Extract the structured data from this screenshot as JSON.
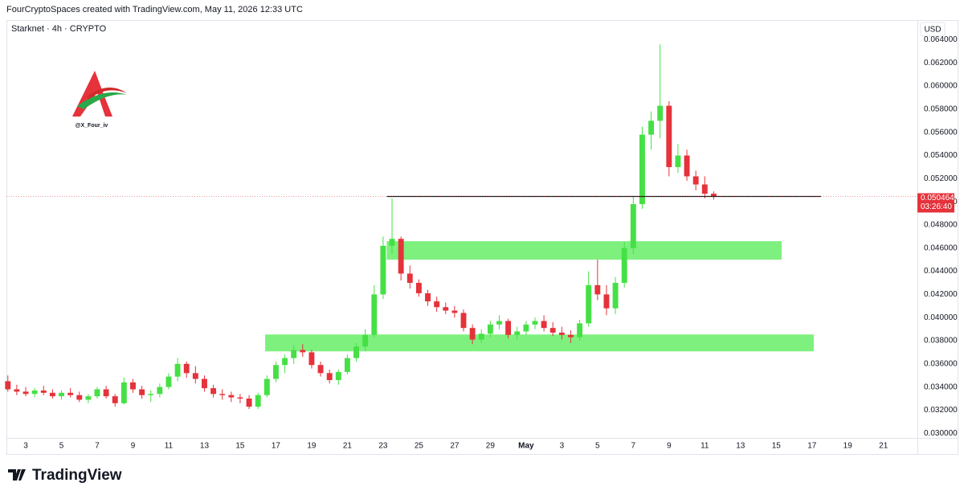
{
  "header": "FourCryptoSpaces created with TradingView.com, May 11, 2026 12:33 UTC",
  "watermark": "@X_Four_iv",
  "footer": "TradingView",
  "chart_data": {
    "type": "candlestick",
    "title": "Starknet · 4h · CRYPTO",
    "currency": "USD",
    "up_color": "#45e045",
    "down_color": "#e5323b",
    "grid": false,
    "x": [
      -1,
      -0.5,
      0,
      0.5,
      1,
      1.5,
      2,
      2.5,
      3,
      3.5,
      4,
      4.5,
      5,
      5.5,
      6,
      6.5,
      7,
      7.5,
      8,
      8.5,
      9,
      9.5,
      10,
      10.5,
      11,
      11.5,
      12,
      12.5,
      13,
      13.5,
      14,
      14.5,
      15,
      15.5,
      16,
      16.5,
      17,
      17.5,
      18,
      18.5,
      19,
      19.5,
      20,
      20.5,
      21,
      21.5,
      22,
      22.5,
      23,
      23.5,
      24,
      24.5,
      25,
      25.5,
      26,
      26.5,
      27,
      27.5,
      28,
      28.5,
      29,
      29.5,
      30,
      30.5,
      31,
      31.5,
      32,
      32.5,
      33,
      33.5,
      34,
      34.5,
      35,
      35.5,
      36,
      36.5,
      37,
      37.5,
      38,
      38.5
    ],
    "open": [
      0.0345,
      0.0338,
      0.0336,
      0.0334,
      0.0337,
      0.0335,
      0.0332,
      0.0335,
      0.0333,
      0.0329,
      0.0332,
      0.0338,
      0.0332,
      0.0326,
      0.0344,
      0.0338,
      0.0333,
      0.0334,
      0.034,
      0.0349,
      0.036,
      0.0352,
      0.0347,
      0.0339,
      0.0334,
      0.0333,
      0.0331,
      0.033,
      0.0323,
      0.0333,
      0.0347,
      0.0359,
      0.0365,
      0.0372,
      0.037,
      0.0359,
      0.0352,
      0.0346,
      0.0353,
      0.0365,
      0.0375,
      0.0385,
      0.042,
      0.0462,
      0.0468,
      0.0438,
      0.043,
      0.0421,
      0.0414,
      0.0409,
      0.0406,
      0.0404,
      0.0391,
      0.0381,
      0.0386,
      0.0394,
      0.0397,
      0.0385,
      0.0388,
      0.0394,
      0.0397,
      0.0391,
      0.0387,
      0.0385,
      0.0383,
      0.0395,
      0.0428,
      0.042,
      0.0408,
      0.043,
      0.046,
      0.0498,
      0.0558,
      0.057,
      0.0583,
      0.053,
      0.054,
      0.0522,
      0.0515,
      0.0507
    ],
    "high": [
      0.035,
      0.0342,
      0.034,
      0.0339,
      0.0341,
      0.0338,
      0.0337,
      0.0339,
      0.0336,
      0.0334,
      0.034,
      0.0341,
      0.0334,
      0.0348,
      0.0347,
      0.0341,
      0.0337,
      0.0343,
      0.0352,
      0.0365,
      0.0362,
      0.0358,
      0.035,
      0.0342,
      0.0338,
      0.0336,
      0.0334,
      0.0333,
      0.0335,
      0.035,
      0.0362,
      0.0368,
      0.0376,
      0.0377,
      0.0372,
      0.0362,
      0.0355,
      0.0355,
      0.0368,
      0.0378,
      0.039,
      0.0428,
      0.047,
      0.0503,
      0.047,
      0.0445,
      0.0433,
      0.0424,
      0.0418,
      0.0413,
      0.041,
      0.0407,
      0.0394,
      0.039,
      0.0397,
      0.0402,
      0.0399,
      0.0392,
      0.0397,
      0.04,
      0.0402,
      0.0396,
      0.0392,
      0.0389,
      0.0398,
      0.044,
      0.045,
      0.0428,
      0.0435,
      0.0465,
      0.0505,
      0.0565,
      0.0578,
      0.0636,
      0.0587,
      0.055,
      0.0545,
      0.0527,
      0.0522,
      0.0509
    ],
    "low": [
      0.0336,
      0.0333,
      0.0332,
      0.0331,
      0.0333,
      0.033,
      0.0329,
      0.0331,
      0.0327,
      0.0326,
      0.033,
      0.033,
      0.0323,
      0.0325,
      0.0335,
      0.033,
      0.0327,
      0.0331,
      0.0338,
      0.0345,
      0.0348,
      0.0343,
      0.0336,
      0.0331,
      0.0329,
      0.0327,
      0.0326,
      0.0321,
      0.0321,
      0.0331,
      0.0344,
      0.0352,
      0.036,
      0.0366,
      0.0356,
      0.0349,
      0.0343,
      0.0342,
      0.0351,
      0.0362,
      0.0371,
      0.0383,
      0.0416,
      0.0455,
      0.0432,
      0.0425,
      0.0418,
      0.041,
      0.0405,
      0.0403,
      0.04,
      0.0388,
      0.0377,
      0.0378,
      0.0383,
      0.039,
      0.0382,
      0.0381,
      0.0385,
      0.039,
      0.0388,
      0.0384,
      0.0381,
      0.0378,
      0.038,
      0.0392,
      0.0415,
      0.0402,
      0.0403,
      0.0426,
      0.0455,
      0.0494,
      0.0545,
      0.0555,
      0.0522,
      0.0525,
      0.0518,
      0.051,
      0.0503,
      0.0502
    ],
    "close": [
      0.0338,
      0.0336,
      0.0334,
      0.0337,
      0.0335,
      0.0332,
      0.0335,
      0.0333,
      0.0329,
      0.0332,
      0.0338,
      0.0332,
      0.0326,
      0.0344,
      0.0338,
      0.0333,
      0.0334,
      0.034,
      0.0349,
      0.036,
      0.0352,
      0.0347,
      0.0339,
      0.0334,
      0.0333,
      0.0331,
      0.033,
      0.0323,
      0.0333,
      0.0347,
      0.0359,
      0.0365,
      0.0372,
      0.037,
      0.0359,
      0.0352,
      0.0346,
      0.0353,
      0.0365,
      0.0375,
      0.0385,
      0.042,
      0.0462,
      0.0468,
      0.0438,
      0.043,
      0.0421,
      0.0414,
      0.0409,
      0.0406,
      0.0404,
      0.0391,
      0.0381,
      0.0386,
      0.0394,
      0.0397,
      0.0385,
      0.0388,
      0.0394,
      0.0397,
      0.0391,
      0.0387,
      0.0385,
      0.0383,
      0.0395,
      0.0428,
      0.042,
      0.0408,
      0.043,
      0.046,
      0.0498,
      0.0558,
      0.057,
      0.0583,
      0.053,
      0.054,
      0.0522,
      0.0515,
      0.0507,
      0.050464
    ],
    "last_price": {
      "value": 0.050464,
      "label": "0.050464"
    },
    "countdown": "03:26:40",
    "zones": [
      {
        "color": "#7ef07e",
        "x": [
          20.2,
          42.3
        ],
        "y": [
          0.045,
          0.0466
        ]
      },
      {
        "color": "#7ef07e",
        "x": [
          13.4,
          44.1
        ],
        "y": [
          0.03708,
          0.03854
        ]
      }
    ],
    "hline": {
      "color": "#111111",
      "x": [
        20.2,
        44.5
      ],
      "y": 0.05046
    },
    "xlim": [
      -1.08,
      49.9
    ],
    "ylim": [
      0.0296,
      0.0657
    ],
    "xticks": [
      {
        "value": 0,
        "label": "3"
      },
      {
        "value": 2,
        "label": "5"
      },
      {
        "value": 4,
        "label": "7"
      },
      {
        "value": 6,
        "label": "9"
      },
      {
        "value": 8,
        "label": "11"
      },
      {
        "value": 10,
        "label": "13"
      },
      {
        "value": 12,
        "label": "15"
      },
      {
        "value": 14,
        "label": "17"
      },
      {
        "value": 16,
        "label": "19"
      },
      {
        "value": 18,
        "label": "21"
      },
      {
        "value": 20,
        "label": "23"
      },
      {
        "value": 22,
        "label": "25"
      },
      {
        "value": 24,
        "label": "27"
      },
      {
        "value": 26,
        "label": "29"
      },
      {
        "value": 28,
        "label": "May"
      },
      {
        "value": 30,
        "label": "3"
      },
      {
        "value": 32,
        "label": "5"
      },
      {
        "value": 34,
        "label": "7"
      },
      {
        "value": 36,
        "label": "9"
      },
      {
        "value": 38,
        "label": "11"
      },
      {
        "value": 40,
        "label": "13"
      },
      {
        "value": 42,
        "label": "15"
      },
      {
        "value": 44,
        "label": "17"
      },
      {
        "value": 46,
        "label": "19"
      },
      {
        "value": 48,
        "label": "21"
      }
    ],
    "yticks": [
      {
        "value": 0.03,
        "label": "0.030000"
      },
      {
        "value": 0.032,
        "label": "0.032000"
      },
      {
        "value": 0.034,
        "label": "0.034000"
      },
      {
        "value": 0.036,
        "label": "0.036000"
      },
      {
        "value": 0.038,
        "label": "0.038000"
      },
      {
        "value": 0.04,
        "label": "0.040000"
      },
      {
        "value": 0.042,
        "label": "0.042000"
      },
      {
        "value": 0.044,
        "label": "0.044000"
      },
      {
        "value": 0.046,
        "label": "0.046000"
      },
      {
        "value": 0.048,
        "label": "0.048000"
      },
      {
        "value": 0.05,
        "label": "0.050000"
      },
      {
        "value": 0.052,
        "label": "0.052000"
      },
      {
        "value": 0.054,
        "label": "0.054000"
      },
      {
        "value": 0.056,
        "label": "0.056000"
      },
      {
        "value": 0.058,
        "label": "0.058000"
      },
      {
        "value": 0.06,
        "label": "0.060000"
      },
      {
        "value": 0.062,
        "label": "0.062000"
      },
      {
        "value": 0.064,
        "label": "0.064000"
      }
    ]
  }
}
